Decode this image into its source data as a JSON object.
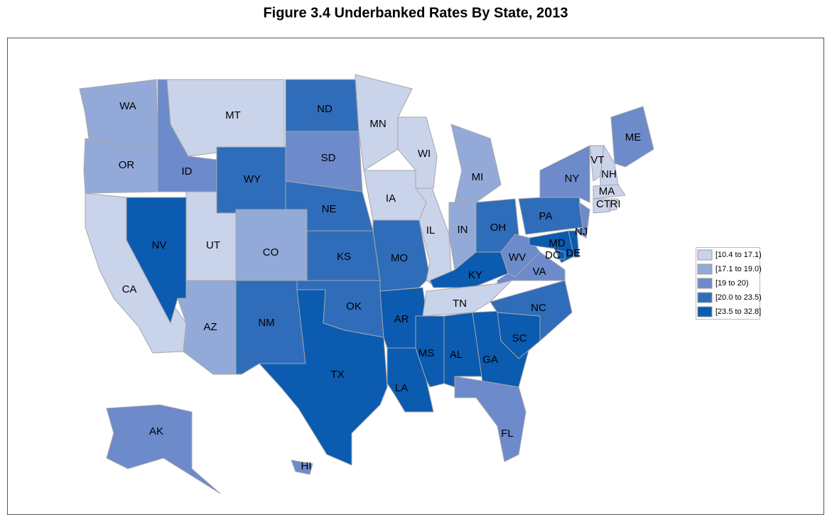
{
  "title": "Figure 3.4   Underbanked Rates By State, 2013",
  "legend": [
    {
      "label": "[10.4 to 17.1)",
      "color": "#c9d3ea"
    },
    {
      "label": "[17.1 to 19.0)",
      "color": "#93aad9"
    },
    {
      "label": "[19 to 20)",
      "color": "#6d8acb"
    },
    {
      "label": "[20.0 to 23.5)",
      "color": "#2f6dbb"
    },
    {
      "label": "[23.5 to 32.8]",
      "color": "#0b5bb0"
    }
  ],
  "states": [
    {
      "label": "WA",
      "class": 1
    },
    {
      "label": "OR",
      "class": 1
    },
    {
      "label": "CA",
      "class": 0
    },
    {
      "label": "NV",
      "class": 4
    },
    {
      "label": "ID",
      "class": 2
    },
    {
      "label": "MT",
      "class": 0
    },
    {
      "label": "WY",
      "class": 3
    },
    {
      "label": "UT",
      "class": 0
    },
    {
      "label": "AZ",
      "class": 1
    },
    {
      "label": "CO",
      "class": 1
    },
    {
      "label": "NM",
      "class": 3
    },
    {
      "label": "ND",
      "class": 3
    },
    {
      "label": "SD",
      "class": 2
    },
    {
      "label": "NE",
      "class": 3
    },
    {
      "label": "KS",
      "class": 3
    },
    {
      "label": "OK",
      "class": 3
    },
    {
      "label": "TX",
      "class": 4
    },
    {
      "label": "MN",
      "class": 0
    },
    {
      "label": "IA",
      "class": 0
    },
    {
      "label": "MO",
      "class": 3
    },
    {
      "label": "AR",
      "class": 4
    },
    {
      "label": "LA",
      "class": 4
    },
    {
      "label": "WI",
      "class": 0
    },
    {
      "label": "IL",
      "class": 0
    },
    {
      "label": "MI",
      "class": 1
    },
    {
      "label": "IN",
      "class": 1
    },
    {
      "label": "OH",
      "class": 3
    },
    {
      "label": "KY",
      "class": 4
    },
    {
      "label": "TN",
      "class": 0
    },
    {
      "label": "MS",
      "class": 4
    },
    {
      "label": "AL",
      "class": 4
    },
    {
      "label": "GA",
      "class": 4
    },
    {
      "label": "FL",
      "class": 2
    },
    {
      "label": "SC",
      "class": 4
    },
    {
      "label": "NC",
      "class": 3
    },
    {
      "label": "VA",
      "class": 2
    },
    {
      "label": "WV",
      "class": 2
    },
    {
      "label": "PA",
      "class": 3
    },
    {
      "label": "NY",
      "class": 2
    },
    {
      "label": "NJ",
      "class": 2
    },
    {
      "label": "MD",
      "class": 4
    },
    {
      "label": "DE",
      "class": 4
    },
    {
      "label": "DC",
      "class": 4
    },
    {
      "label": "ME",
      "class": 2
    },
    {
      "label": "VT",
      "class": 0
    },
    {
      "label": "NH",
      "class": 0
    },
    {
      "label": "MA",
      "class": 0
    },
    {
      "label": "CT",
      "class": 0
    },
    {
      "label": "RI",
      "class": 0
    },
    {
      "label": "AK",
      "class": 2
    },
    {
      "label": "HI",
      "class": 2
    }
  ]
}
